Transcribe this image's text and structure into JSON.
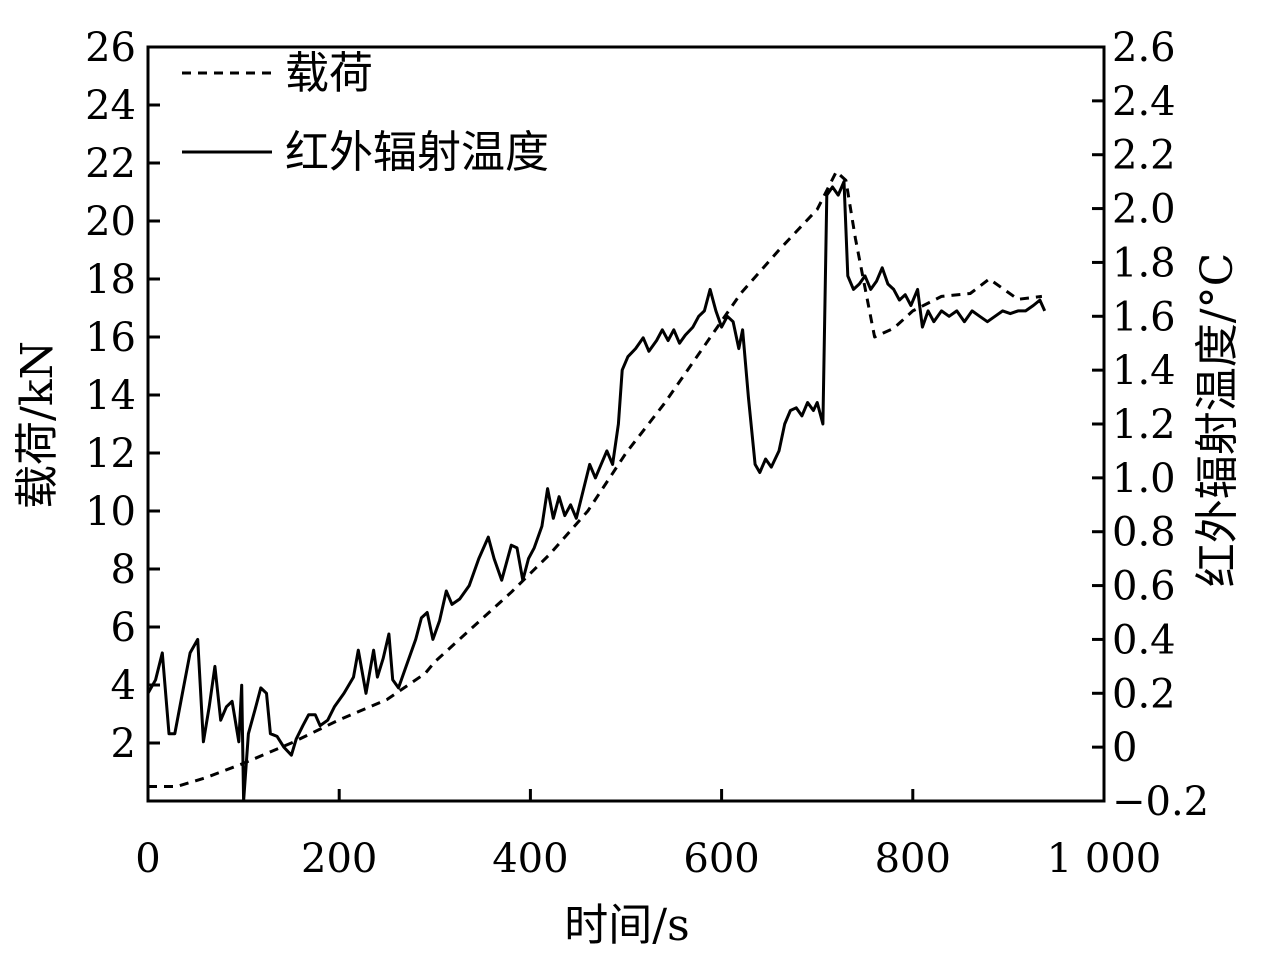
{
  "chart_data": {
    "type": "line",
    "xlabel": "时间/s",
    "ylabel_left": "载荷/kN",
    "ylabel_right": "红外辐射温度/°C",
    "xlim": [
      0,
      1000
    ],
    "ylim_left": [
      0,
      26
    ],
    "ylim_right": [
      -0.2,
      2.6
    ],
    "x_ticks": [
      0,
      200,
      400,
      600,
      800,
      1000
    ],
    "x_tick_labels": [
      "0",
      "200",
      "400",
      "600",
      "800",
      "1 000"
    ],
    "y_left_ticks": [
      2,
      4,
      6,
      8,
      10,
      12,
      14,
      16,
      18,
      20,
      22,
      24,
      26
    ],
    "y_left_tick_labels": [
      "2",
      "4",
      "6",
      "8",
      "10",
      "12",
      "14",
      "16",
      "18",
      "20",
      "22",
      "24",
      "26"
    ],
    "y_right_ticks": [
      -0.2,
      0,
      0.2,
      0.4,
      0.6,
      0.8,
      1.0,
      1.2,
      1.4,
      1.6,
      1.8,
      2.0,
      2.2,
      2.4,
      2.6
    ],
    "y_right_tick_labels": [
      "−0.2",
      "0",
      "0.2",
      "0.4",
      "0.6",
      "0.8",
      "1.0",
      "1.2",
      "1.4",
      "1.6",
      "1.8",
      "2.0",
      "2.2",
      "2.4",
      "2.6"
    ],
    "legend_position": "top-left",
    "grid": false,
    "series": [
      {
        "name": "载荷",
        "axis": "left",
        "style": "dashed",
        "color": "#000000",
        "points": [
          [
            0,
            0.5
          ],
          [
            30,
            0.5
          ],
          [
            60,
            0.8
          ],
          [
            100,
            1.3
          ],
          [
            150,
            2.0
          ],
          [
            200,
            2.8
          ],
          [
            250,
            3.5
          ],
          [
            290,
            4.4
          ],
          [
            300,
            4.8
          ],
          [
            340,
            6.0
          ],
          [
            380,
            7.2
          ],
          [
            420,
            8.5
          ],
          [
            460,
            10.0
          ],
          [
            500,
            12.0
          ],
          [
            540,
            13.7
          ],
          [
            580,
            15.6
          ],
          [
            620,
            17.5
          ],
          [
            660,
            19.0
          ],
          [
            700,
            20.4
          ],
          [
            720,
            21.7
          ],
          [
            730,
            21.4
          ],
          [
            740,
            19.4
          ],
          [
            760,
            16.0
          ],
          [
            780,
            16.3
          ],
          [
            800,
            16.9
          ],
          [
            830,
            17.4
          ],
          [
            860,
            17.5
          ],
          [
            880,
            18.0
          ],
          [
            910,
            17.3
          ],
          [
            935,
            17.4
          ]
        ]
      },
      {
        "name": "红外辐射温度",
        "axis": "right",
        "style": "solid",
        "color": "#000000",
        "points": [
          [
            0,
            0.2
          ],
          [
            8,
            0.25
          ],
          [
            15,
            0.35
          ],
          [
            22,
            0.05
          ],
          [
            28,
            0.05
          ],
          [
            36,
            0.2
          ],
          [
            44,
            0.35
          ],
          [
            52,
            0.4
          ],
          [
            58,
            0.02
          ],
          [
            64,
            0.15
          ],
          [
            70,
            0.3
          ],
          [
            76,
            0.1
          ],
          [
            82,
            0.15
          ],
          [
            88,
            0.17
          ],
          [
            95,
            0.02
          ],
          [
            98,
            0.23
          ],
          [
            100,
            -0.2
          ],
          [
            105,
            0.05
          ],
          [
            112,
            0.14
          ],
          [
            118,
            0.22
          ],
          [
            124,
            0.2
          ],
          [
            128,
            0.05
          ],
          [
            135,
            0.04
          ],
          [
            142,
            0.0
          ],
          [
            150,
            -0.03
          ],
          [
            155,
            0.03
          ],
          [
            162,
            0.08
          ],
          [
            168,
            0.12
          ],
          [
            175,
            0.12
          ],
          [
            180,
            0.08
          ],
          [
            188,
            0.1
          ],
          [
            195,
            0.15
          ],
          [
            205,
            0.2
          ],
          [
            215,
            0.26
          ],
          [
            220,
            0.36
          ],
          [
            228,
            0.2
          ],
          [
            236,
            0.36
          ],
          [
            240,
            0.26
          ],
          [
            246,
            0.33
          ],
          [
            252,
            0.42
          ],
          [
            256,
            0.25
          ],
          [
            262,
            0.22
          ],
          [
            270,
            0.3
          ],
          [
            280,
            0.4
          ],
          [
            286,
            0.48
          ],
          [
            292,
            0.5
          ],
          [
            298,
            0.4
          ],
          [
            305,
            0.47
          ],
          [
            312,
            0.58
          ],
          [
            318,
            0.53
          ],
          [
            326,
            0.55
          ],
          [
            336,
            0.6
          ],
          [
            346,
            0.7
          ],
          [
            356,
            0.78
          ],
          [
            362,
            0.7
          ],
          [
            370,
            0.62
          ],
          [
            380,
            0.75
          ],
          [
            386,
            0.74
          ],
          [
            392,
            0.62
          ],
          [
            398,
            0.7
          ],
          [
            404,
            0.74
          ],
          [
            412,
            0.82
          ],
          [
            418,
            0.96
          ],
          [
            424,
            0.85
          ],
          [
            430,
            0.93
          ],
          [
            436,
            0.86
          ],
          [
            442,
            0.9
          ],
          [
            448,
            0.85
          ],
          [
            455,
            0.95
          ],
          [
            462,
            1.05
          ],
          [
            468,
            1.0
          ],
          [
            474,
            1.05
          ],
          [
            480,
            1.1
          ],
          [
            486,
            1.05
          ],
          [
            492,
            1.2
          ],
          [
            496,
            1.4
          ],
          [
            502,
            1.45
          ],
          [
            510,
            1.48
          ],
          [
            518,
            1.52
          ],
          [
            524,
            1.47
          ],
          [
            532,
            1.51
          ],
          [
            538,
            1.55
          ],
          [
            544,
            1.51
          ],
          [
            550,
            1.55
          ],
          [
            556,
            1.5
          ],
          [
            562,
            1.53
          ],
          [
            570,
            1.56
          ],
          [
            576,
            1.6
          ],
          [
            582,
            1.62
          ],
          [
            588,
            1.7
          ],
          [
            594,
            1.62
          ],
          [
            600,
            1.56
          ],
          [
            606,
            1.6
          ],
          [
            612,
            1.58
          ],
          [
            618,
            1.48
          ],
          [
            622,
            1.55
          ],
          [
            628,
            1.3
          ],
          [
            635,
            1.05
          ],
          [
            640,
            1.02
          ],
          [
            646,
            1.07
          ],
          [
            652,
            1.04
          ],
          [
            660,
            1.1
          ],
          [
            666,
            1.2
          ],
          [
            672,
            1.25
          ],
          [
            678,
            1.26
          ],
          [
            684,
            1.23
          ],
          [
            690,
            1.28
          ],
          [
            696,
            1.25
          ],
          [
            700,
            1.28
          ],
          [
            706,
            1.2
          ],
          [
            710,
            2.05
          ],
          [
            716,
            2.08
          ],
          [
            722,
            2.05
          ],
          [
            728,
            2.1
          ],
          [
            732,
            1.75
          ],
          [
            738,
            1.7
          ],
          [
            744,
            1.72
          ],
          [
            750,
            1.75
          ],
          [
            756,
            1.7
          ],
          [
            762,
            1.73
          ],
          [
            768,
            1.78
          ],
          [
            774,
            1.72
          ],
          [
            780,
            1.7
          ],
          [
            786,
            1.66
          ],
          [
            792,
            1.68
          ],
          [
            798,
            1.64
          ],
          [
            805,
            1.7
          ],
          [
            810,
            1.56
          ],
          [
            816,
            1.62
          ],
          [
            822,
            1.58
          ],
          [
            830,
            1.62
          ],
          [
            838,
            1.6
          ],
          [
            846,
            1.62
          ],
          [
            854,
            1.58
          ],
          [
            862,
            1.62
          ],
          [
            870,
            1.6
          ],
          [
            878,
            1.58
          ],
          [
            886,
            1.6
          ],
          [
            894,
            1.62
          ],
          [
            902,
            1.61
          ],
          [
            910,
            1.62
          ],
          [
            918,
            1.62
          ],
          [
            926,
            1.64
          ],
          [
            933,
            1.66
          ],
          [
            938,
            1.62
          ]
        ]
      }
    ]
  }
}
